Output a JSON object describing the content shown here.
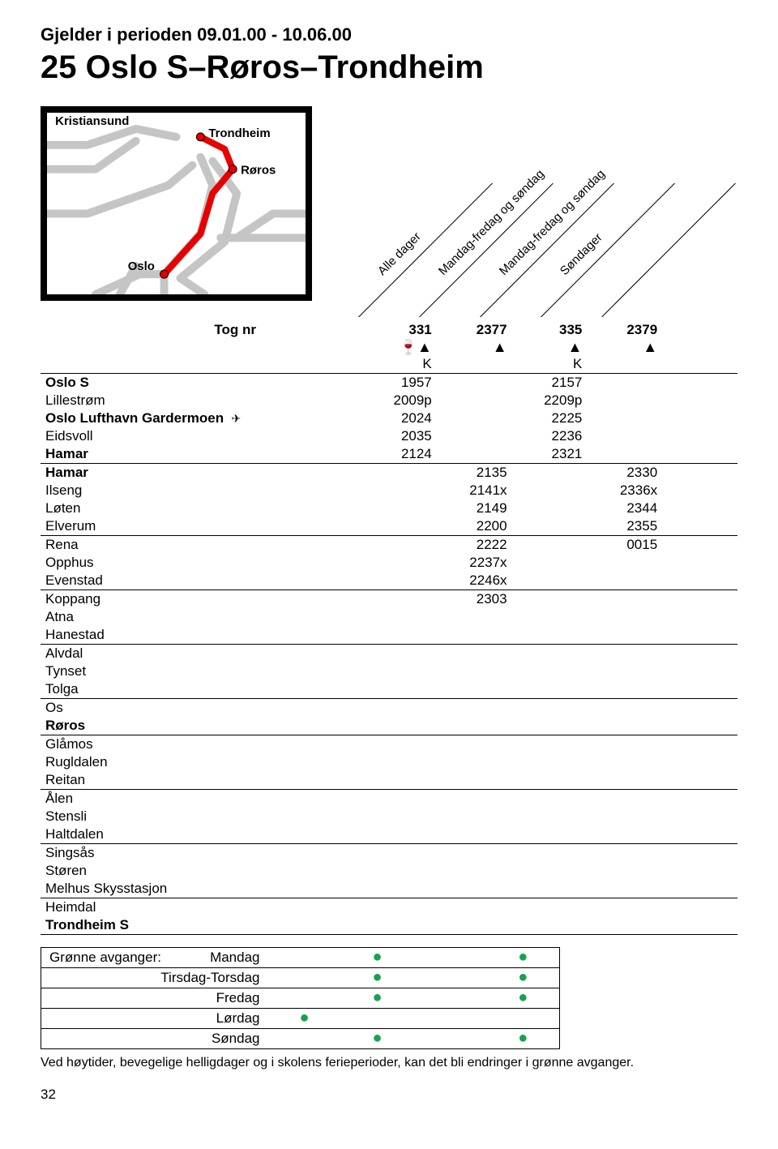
{
  "validity": "Gjelder i perioden 09.01.00 - 10.06.00",
  "route_title": "25 Oslo S–Røros–Trondheim",
  "map": {
    "labels": {
      "kristiansund": "Kristiansund",
      "trondheim": "Trondheim",
      "roros": "Røros",
      "oslo": "Oslo"
    },
    "colors": {
      "bg_line": "#c5c5c5",
      "active_line": "#e60000",
      "border": "#000000"
    }
  },
  "day_headers": [
    "Alle dager",
    "Mandag-fredag og søndag",
    "Mandag-fredag og søndag",
    "Søndager"
  ],
  "tog_nr_label": "Tog nr",
  "train_numbers": [
    "331",
    "2377",
    "335",
    "2379"
  ],
  "symbols_row": [
    "🍷▲",
    "▲",
    "▲",
    "▲"
  ],
  "k_row": [
    "K",
    "",
    "K",
    ""
  ],
  "stations": [
    {
      "name": "Oslo S",
      "bold": true,
      "airport": false,
      "t": [
        "1957",
        "",
        "2157",
        ""
      ]
    },
    {
      "name": "Lillestrøm",
      "bold": false,
      "airport": false,
      "t": [
        "2009p",
        "",
        "2209p",
        ""
      ]
    },
    {
      "name": "Oslo Lufthavn Gardermoen",
      "bold": true,
      "airport": true,
      "t": [
        "2024",
        "",
        "2225",
        ""
      ]
    },
    {
      "name": "Eidsvoll",
      "bold": false,
      "airport": false,
      "t": [
        "2035",
        "",
        "2236",
        ""
      ]
    },
    {
      "name": "Hamar",
      "bold": true,
      "airport": false,
      "t": [
        "2124",
        "",
        "2321",
        ""
      ],
      "sep": true
    },
    {
      "name": "Hamar",
      "bold": true,
      "airport": false,
      "t": [
        "",
        "2135",
        "",
        "2330"
      ]
    },
    {
      "name": "Ilseng",
      "bold": false,
      "airport": false,
      "t": [
        "",
        "2141x",
        "",
        "2336x"
      ]
    },
    {
      "name": "Løten",
      "bold": false,
      "airport": false,
      "t": [
        "",
        "2149",
        "",
        "2344"
      ]
    },
    {
      "name": "Elverum",
      "bold": false,
      "airport": false,
      "t": [
        "",
        "2200",
        "",
        "2355"
      ],
      "sep": true
    },
    {
      "name": "Rena",
      "bold": false,
      "airport": false,
      "t": [
        "",
        "2222",
        "",
        "0015"
      ]
    },
    {
      "name": "Opphus",
      "bold": false,
      "airport": false,
      "t": [
        "",
        "2237x",
        "",
        ""
      ]
    },
    {
      "name": "Evenstad",
      "bold": false,
      "airport": false,
      "t": [
        "",
        "2246x",
        "",
        ""
      ],
      "sep": true
    },
    {
      "name": "Koppang",
      "bold": false,
      "airport": false,
      "t": [
        "",
        "2303",
        "",
        ""
      ]
    },
    {
      "name": "Atna",
      "bold": false,
      "airport": false,
      "t": [
        "",
        "",
        "",
        ""
      ]
    },
    {
      "name": "Hanestad",
      "bold": false,
      "airport": false,
      "t": [
        "",
        "",
        "",
        ""
      ],
      "sep": true
    },
    {
      "name": "Alvdal",
      "bold": false,
      "airport": false,
      "t": [
        "",
        "",
        "",
        ""
      ]
    },
    {
      "name": "Tynset",
      "bold": false,
      "airport": false,
      "t": [
        "",
        "",
        "",
        ""
      ]
    },
    {
      "name": "Tolga",
      "bold": false,
      "airport": false,
      "t": [
        "",
        "",
        "",
        ""
      ],
      "sep": true
    },
    {
      "name": "Os",
      "bold": false,
      "airport": false,
      "t": [
        "",
        "",
        "",
        ""
      ]
    },
    {
      "name": "Røros",
      "bold": true,
      "airport": false,
      "t": [
        "",
        "",
        "",
        ""
      ],
      "sep": true
    },
    {
      "name": "Glåmos",
      "bold": false,
      "airport": false,
      "t": [
        "",
        "",
        "",
        ""
      ]
    },
    {
      "name": "Rugldalen",
      "bold": false,
      "airport": false,
      "t": [
        "",
        "",
        "",
        ""
      ]
    },
    {
      "name": "Reitan",
      "bold": false,
      "airport": false,
      "t": [
        "",
        "",
        "",
        ""
      ],
      "sep": true
    },
    {
      "name": "Ålen",
      "bold": false,
      "airport": false,
      "t": [
        "",
        "",
        "",
        ""
      ]
    },
    {
      "name": "Stensli",
      "bold": false,
      "airport": false,
      "t": [
        "",
        "",
        "",
        ""
      ]
    },
    {
      "name": "Haltdalen",
      "bold": false,
      "airport": false,
      "t": [
        "",
        "",
        "",
        ""
      ],
      "sep": true
    },
    {
      "name": "Singsås",
      "bold": false,
      "airport": false,
      "t": [
        "",
        "",
        "",
        ""
      ]
    },
    {
      "name": "Støren",
      "bold": false,
      "airport": false,
      "t": [
        "",
        "",
        "",
        ""
      ]
    },
    {
      "name": "Melhus Skysstasjon",
      "bold": false,
      "airport": false,
      "t": [
        "",
        "",
        "",
        ""
      ],
      "sep": true
    },
    {
      "name": "Heimdal",
      "bold": false,
      "airport": false,
      "t": [
        "",
        "",
        "",
        ""
      ]
    },
    {
      "name": "Trondheim S",
      "bold": true,
      "airport": false,
      "t": [
        "",
        "",
        "",
        ""
      ],
      "sep": true
    }
  ],
  "green_label": "Grønne avganger:",
  "green_days": [
    "Mandag",
    "Tirsdag-Torsdag",
    "Fredag",
    "Lørdag",
    "Søndag"
  ],
  "green_dots": [
    [
      false,
      true,
      false,
      true
    ],
    [
      false,
      true,
      false,
      true
    ],
    [
      false,
      true,
      false,
      true
    ],
    [
      true,
      false,
      false,
      false
    ],
    [
      false,
      true,
      false,
      true
    ]
  ],
  "green_dot_color": "#17a34a",
  "footnote": "Ved høytider, bevegelige helligdager og i skolens ferieperioder, kan det bli endringer i grønne avganger.",
  "page_number": "32"
}
